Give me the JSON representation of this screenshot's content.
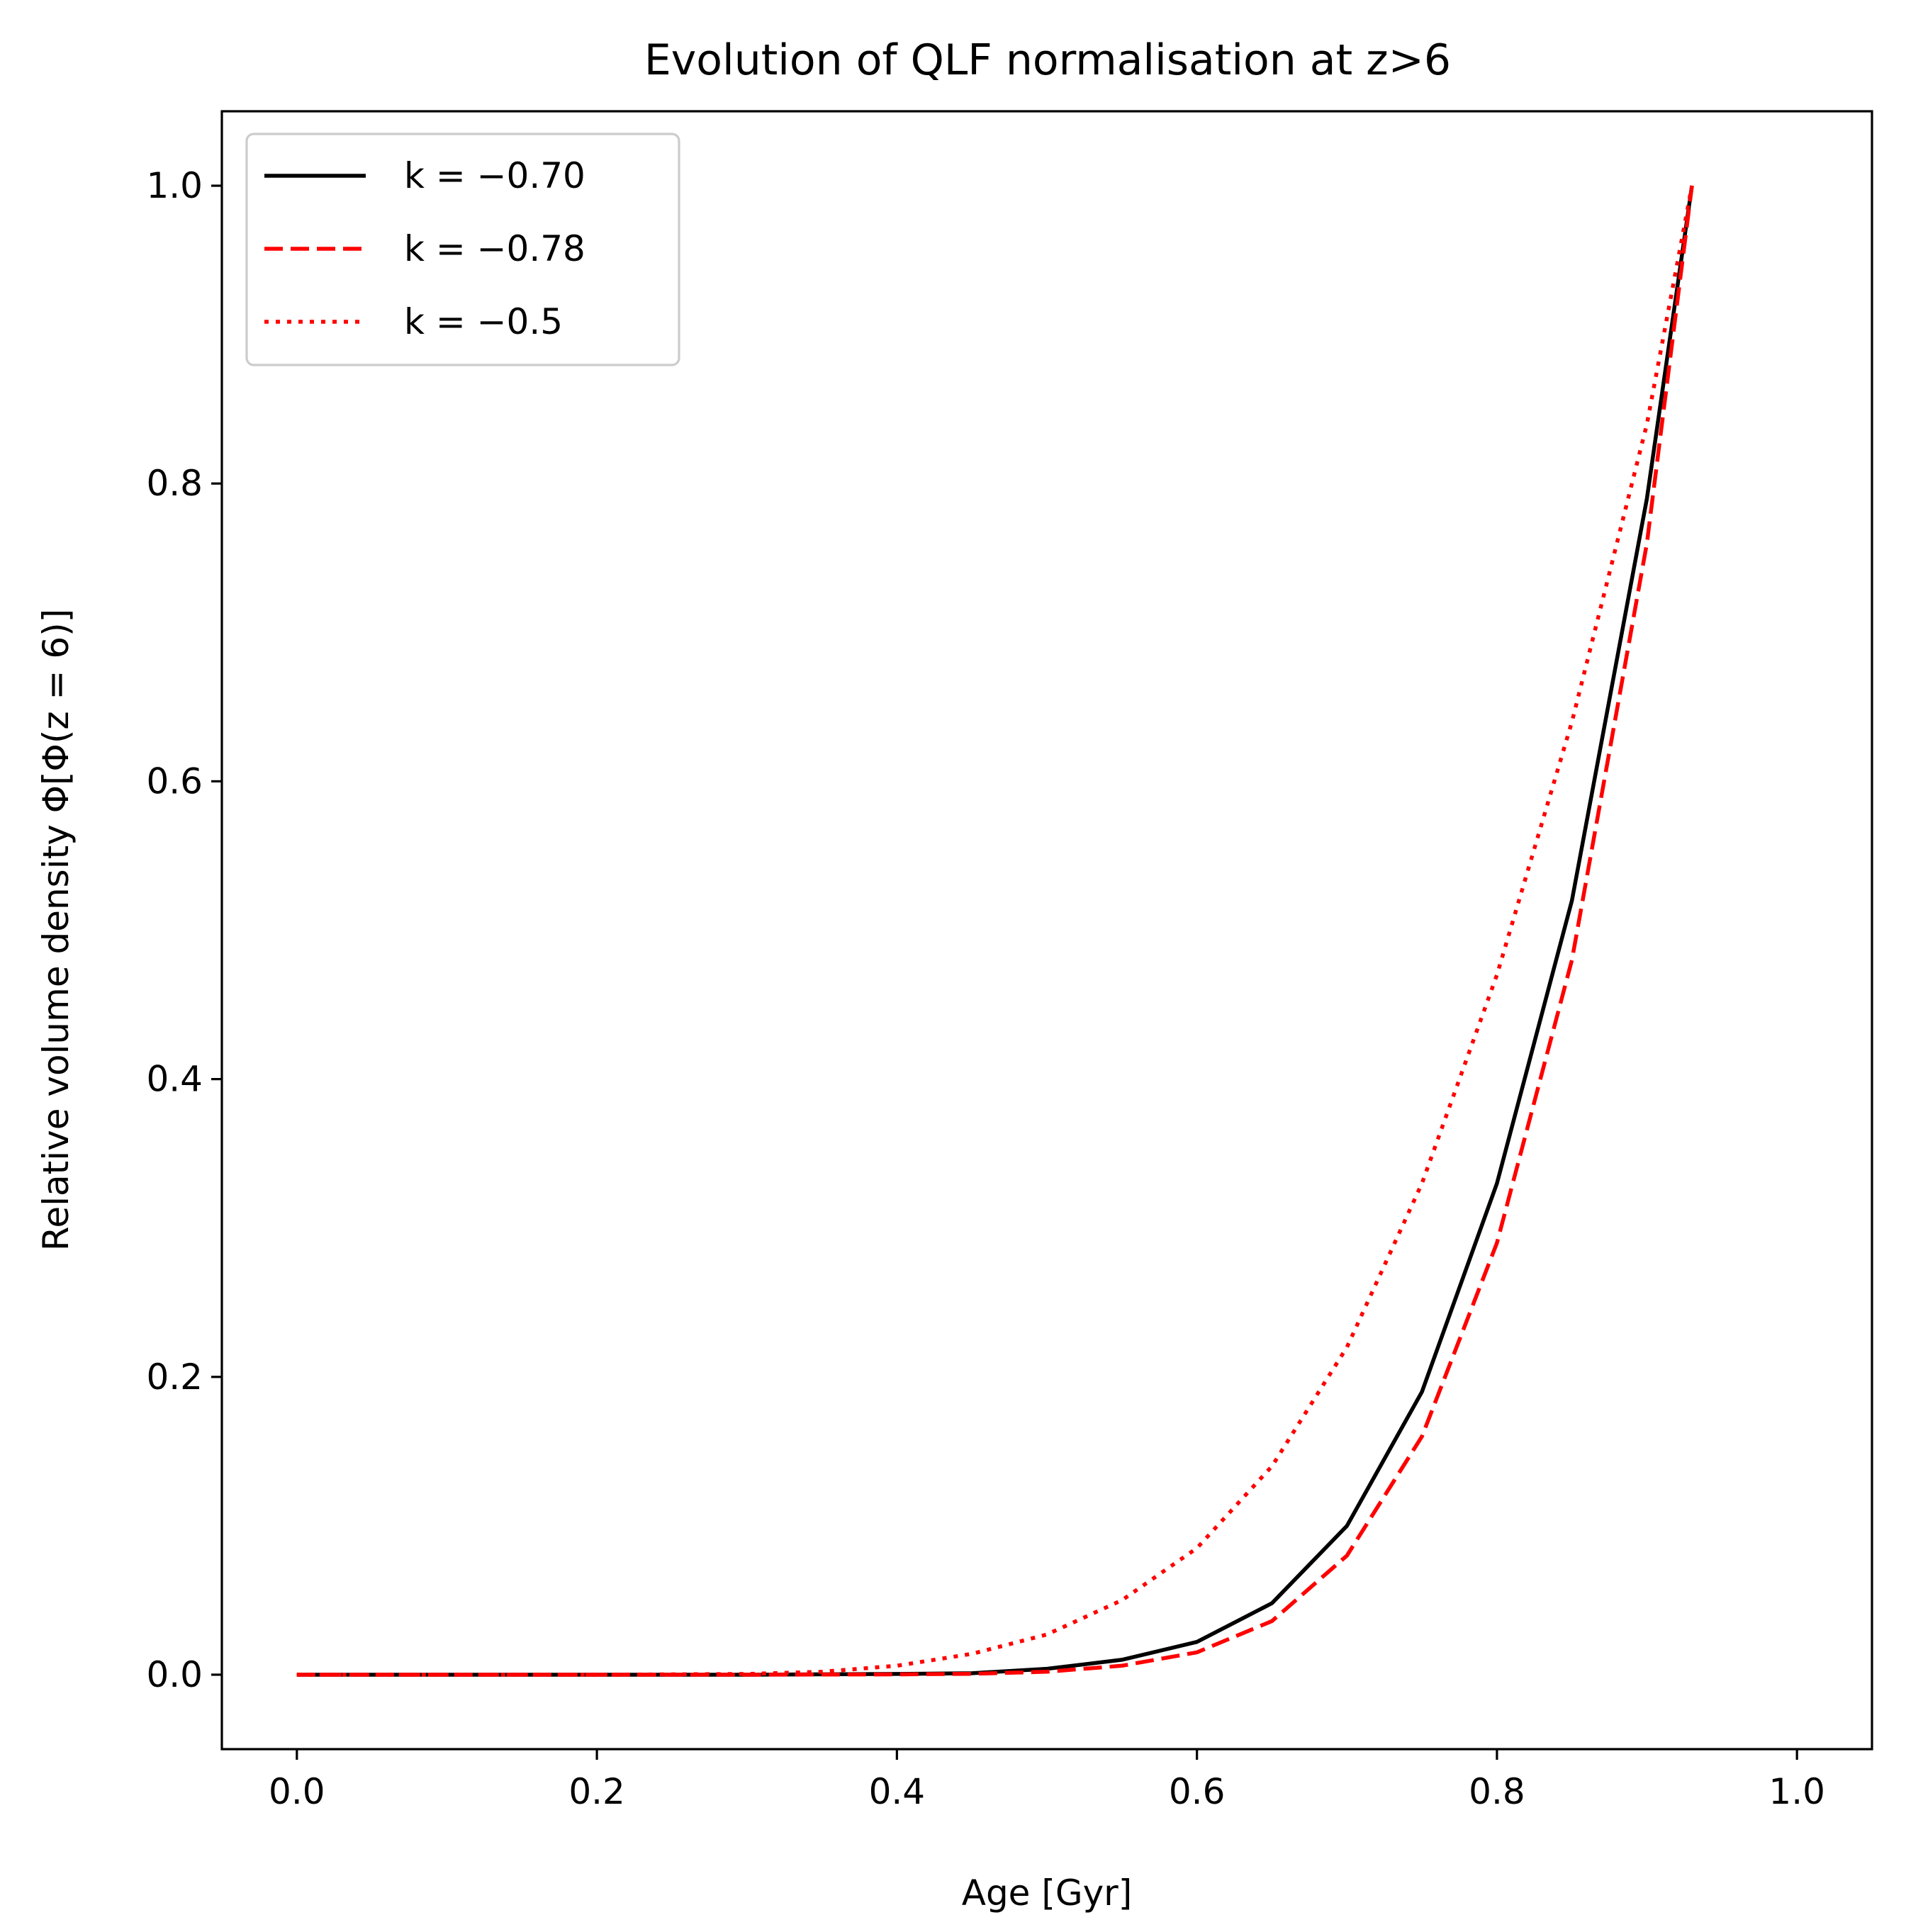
{
  "chart_data": {
    "type": "line",
    "title": "Evolution of QLF normalisation at z>6",
    "xlabel": "Age [Gyr]",
    "ylabel": "Relative volume density Φ[Φ(z = 6)]",
    "xlim": [
      -0.05,
      1.05
    ],
    "ylim": [
      -0.05,
      1.05
    ],
    "xticks": [
      0.0,
      0.2,
      0.4,
      0.6,
      0.8,
      1.0
    ],
    "xtick_labels": [
      "0.0",
      "0.2",
      "0.4",
      "0.6",
      "0.8",
      "1.0"
    ],
    "yticks": [
      0.0,
      0.2,
      0.4,
      0.6,
      0.8,
      1.0
    ],
    "ytick_labels": [
      "0.0",
      "0.2",
      "0.4",
      "0.6",
      "0.8",
      "1.0"
    ],
    "grid": false,
    "legend_position": "upper-left",
    "series": [
      {
        "name": "k = −0.70",
        "legend_label": "k = −0.70",
        "color": "#000000",
        "style": "solid",
        "x": [
          0.0,
          0.1,
          0.2,
          0.3,
          0.4,
          0.45,
          0.5,
          0.55,
          0.6,
          0.65,
          0.7,
          0.75,
          0.8,
          0.85,
          0.9,
          0.93
        ],
        "y": [
          0.0,
          0.0,
          0.0,
          0.0,
          0.0005,
          0.001,
          0.004,
          0.01,
          0.022,
          0.048,
          0.1,
          0.19,
          0.33,
          0.52,
          0.79,
          1.0
        ]
      },
      {
        "name": "k = −0.78",
        "legend_label": "k = −0.78",
        "color": "#ff0000",
        "style": "dashed",
        "x": [
          0.0,
          0.1,
          0.2,
          0.3,
          0.4,
          0.45,
          0.5,
          0.55,
          0.6,
          0.65,
          0.7,
          0.75,
          0.8,
          0.85,
          0.9,
          0.93
        ],
        "y": [
          0.0,
          0.0,
          0.0,
          0.0,
          0.0002,
          0.0006,
          0.002,
          0.006,
          0.015,
          0.036,
          0.08,
          0.16,
          0.29,
          0.48,
          0.76,
          1.0
        ]
      },
      {
        "name": "k = −0.5",
        "legend_label": "k = −0.5",
        "color": "#ff0000",
        "style": "dotted",
        "x": [
          0.0,
          0.1,
          0.2,
          0.3,
          0.35,
          0.4,
          0.45,
          0.5,
          0.55,
          0.6,
          0.65,
          0.7,
          0.75,
          0.8,
          0.85,
          0.9,
          0.93
        ],
        "y": [
          0.0,
          0.0,
          0.0,
          0.0005,
          0.002,
          0.006,
          0.014,
          0.027,
          0.05,
          0.085,
          0.14,
          0.22,
          0.33,
          0.47,
          0.64,
          0.84,
          1.0
        ]
      }
    ]
  }
}
